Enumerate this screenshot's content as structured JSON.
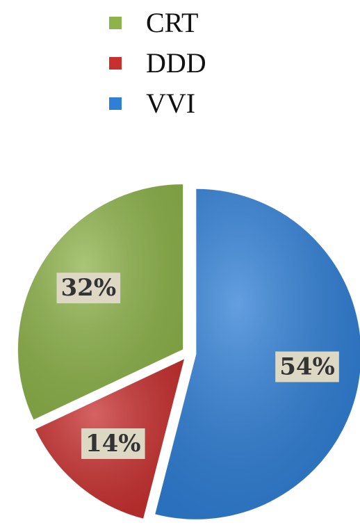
{
  "chart_data": {
    "type": "pie",
    "categories": [
      "CRT",
      "DDD",
      "VVI"
    ],
    "values": [
      32,
      14,
      54
    ],
    "value_labels": [
      "32%",
      "14%",
      "54%"
    ],
    "colors": [
      "#8db34a",
      "#c8302f",
      "#2f7fd6"
    ],
    "legend": "top"
  }
}
